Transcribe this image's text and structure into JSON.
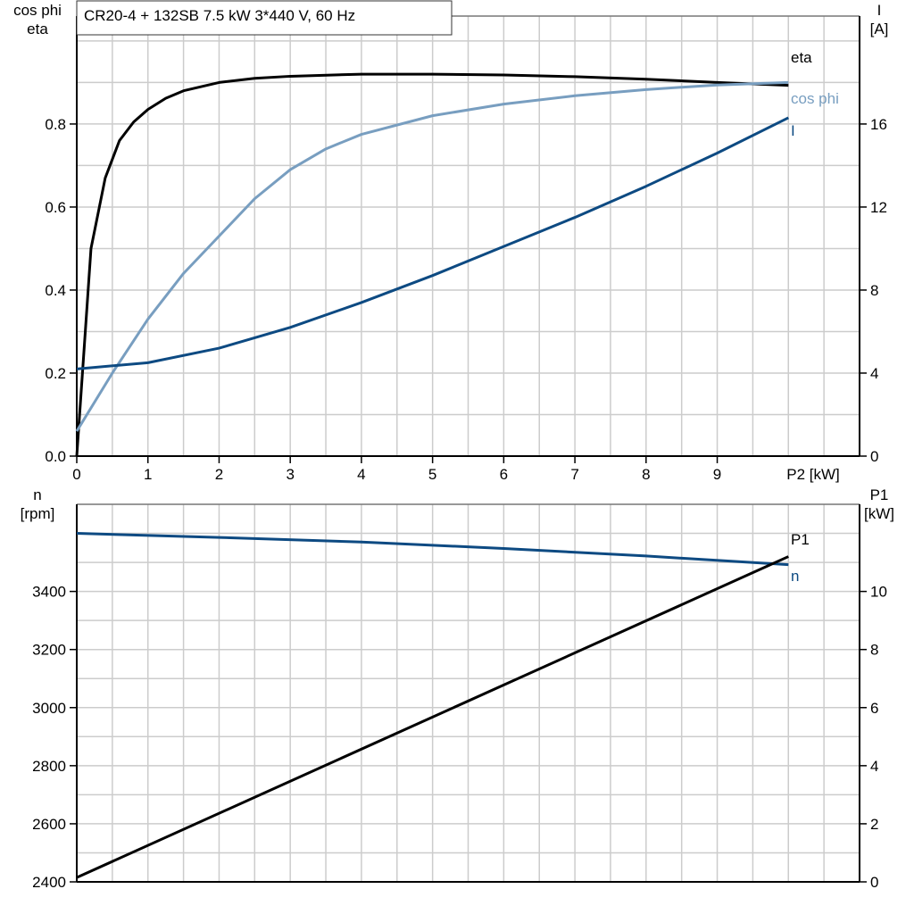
{
  "chart_data": [
    {
      "type": "line",
      "title": "CR20-4 + 132SB   7.5 kW   3*440 V, 60 Hz",
      "xlabel": "P2 [kW]",
      "ylabel_left": [
        "cos phi",
        "eta"
      ],
      "ylabel_right": [
        "I",
        "[A]"
      ],
      "xlim": [
        0,
        11
      ],
      "ylim_left": [
        0,
        1.06
      ],
      "ylim_right": [
        0,
        21.2
      ],
      "x_ticks": [
        0,
        1,
        2,
        3,
        4,
        5,
        6,
        7,
        8,
        9
      ],
      "y_ticks_left": [
        "0.0",
        "0.2",
        "0.4",
        "0.6",
        "0.8"
      ],
      "y_ticks_right": [
        "0",
        "4",
        "8",
        "12",
        "16"
      ],
      "grid": true,
      "series": [
        {
          "name": "eta",
          "axis": "left",
          "color": "#000000",
          "x": [
            0,
            0.2,
            0.4,
            0.6,
            0.8,
            1,
            1.25,
            1.5,
            2,
            2.5,
            3,
            4,
            5,
            6,
            7,
            8,
            9,
            10
          ],
          "y": [
            0,
            0.5,
            0.67,
            0.76,
            0.805,
            0.835,
            0.862,
            0.88,
            0.9,
            0.91,
            0.915,
            0.92,
            0.92,
            0.918,
            0.914,
            0.908,
            0.9,
            0.893
          ]
        },
        {
          "name": "cos phi",
          "axis": "left",
          "color": "#789ec0",
          "x": [
            0,
            0.5,
            1,
            1.5,
            2,
            2.5,
            3,
            3.5,
            4,
            5,
            6,
            7,
            8,
            9,
            10
          ],
          "y": [
            0.06,
            0.2,
            0.33,
            0.44,
            0.53,
            0.62,
            0.69,
            0.74,
            0.775,
            0.82,
            0.848,
            0.868,
            0.883,
            0.894,
            0.9
          ]
        },
        {
          "name": "I",
          "axis": "right",
          "color": "#0d4a82",
          "x": [
            0,
            1,
            2,
            3,
            4,
            5,
            6,
            7,
            8,
            9,
            10
          ],
          "y": [
            4.2,
            4.5,
            5.2,
            6.2,
            7.4,
            8.7,
            10.1,
            11.5,
            13.0,
            14.6,
            16.3
          ]
        }
      ]
    },
    {
      "type": "line",
      "ylabel_left": [
        "n",
        "[rpm]"
      ],
      "ylabel_right": [
        "P1",
        "[kW]"
      ],
      "xlim": [
        0,
        11
      ],
      "ylim_left": [
        2400,
        3700
      ],
      "ylim_right": [
        0,
        13
      ],
      "y_ticks_left": [
        "2400",
        "2600",
        "2800",
        "3000",
        "3200",
        "3400"
      ],
      "y_ticks_right": [
        "0",
        "2",
        "4",
        "6",
        "8",
        "10"
      ],
      "grid": true,
      "series": [
        {
          "name": "n",
          "axis": "left",
          "color": "#0d4a82",
          "x": [
            0,
            2,
            4,
            6,
            8,
            10
          ],
          "y": [
            3600,
            3586,
            3570,
            3548,
            3522,
            3492
          ]
        },
        {
          "name": "P1",
          "axis": "right",
          "color": "#000000",
          "x": [
            0,
            10
          ],
          "y": [
            0.15,
            11.2
          ]
        }
      ]
    }
  ]
}
